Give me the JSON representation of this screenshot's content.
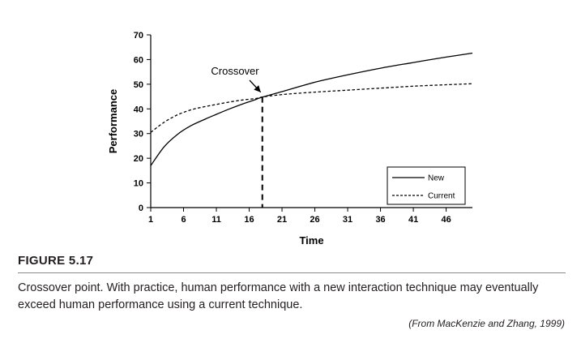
{
  "chart_data": {
    "type": "line",
    "title": "",
    "xlabel": "Time",
    "ylabel": "Performance",
    "xlim": [
      1,
      50
    ],
    "ylim": [
      0,
      70
    ],
    "x_ticks": [
      1,
      6,
      11,
      16,
      21,
      26,
      31,
      36,
      41,
      46
    ],
    "y_ticks": [
      0,
      10,
      20,
      30,
      40,
      50,
      60,
      70
    ],
    "grid": false,
    "legend_position": "bottom-right",
    "series": [
      {
        "name": "New",
        "style": "solid",
        "x": [
          1,
          3,
          5,
          7,
          9,
          11,
          13,
          15,
          17,
          18,
          21,
          26,
          31,
          36,
          41,
          46,
          50
        ],
        "y": [
          17,
          24.5,
          29.5,
          33,
          35.5,
          37.8,
          40,
          42,
          43.8,
          44.8,
          47,
          50.8,
          53.8,
          56.5,
          58.8,
          61,
          62.6
        ]
      },
      {
        "name": "Current",
        "style": "dashed",
        "x": [
          1,
          3,
          5,
          7,
          9,
          11,
          13,
          15,
          17,
          18,
          21,
          26,
          31,
          36,
          41,
          46,
          50
        ],
        "y": [
          30.5,
          34.5,
          37.5,
          39.5,
          40.8,
          41.8,
          42.8,
          43.6,
          44.2,
          44.8,
          45.8,
          46.8,
          47.6,
          48.4,
          49.2,
          49.8,
          50.2
        ]
      }
    ],
    "annotations": [
      {
        "text": "Crossover",
        "x": 18,
        "y": 44.8
      }
    ]
  },
  "figure": {
    "label": "FIGURE 5.17",
    "caption": "Crossover point. With practice, human performance with a new interaction technique may eventually exceed human performance using a current technique.",
    "source": "(From MacKenzie and Zhang, 1999)"
  }
}
